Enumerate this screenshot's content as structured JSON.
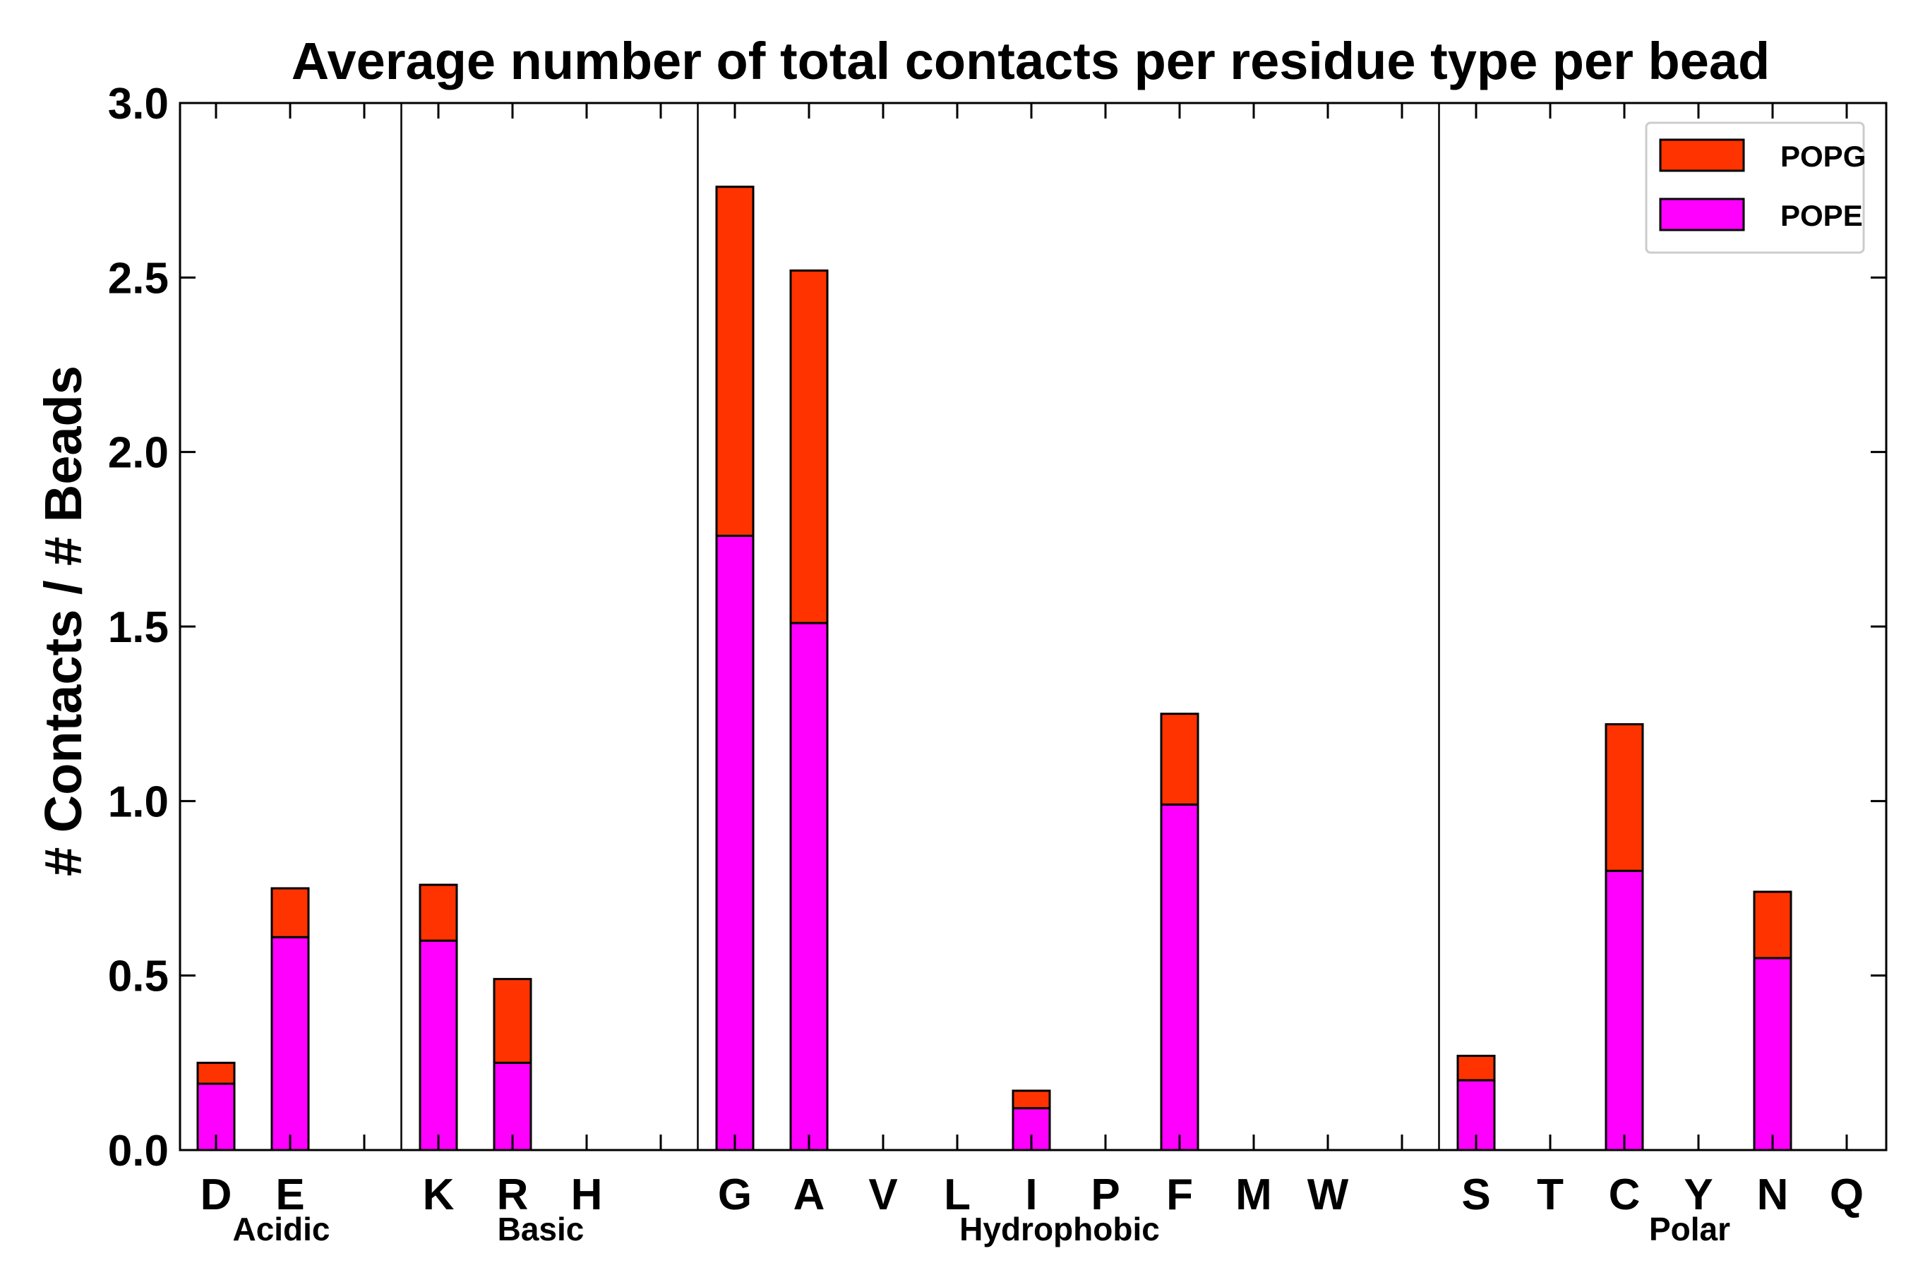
{
  "chart_data": {
    "type": "bar",
    "stacked": true,
    "title": "Average number of total contacts per residue type per bead",
    "xlabel": "",
    "ylabel": "# Contacts / # Beads",
    "ylim": [
      0,
      3.0
    ],
    "yticks": [
      "0.0",
      "0.5",
      "1.0",
      "1.5",
      "2.0",
      "2.5",
      "3.0"
    ],
    "categories": [
      "D",
      "E",
      "",
      "K",
      "R",
      "H",
      "",
      "G",
      "A",
      "V",
      "L",
      "I",
      "P",
      "F",
      "M",
      "W",
      "",
      "S",
      "T",
      "C",
      "Y",
      "N",
      "Q"
    ],
    "series": [
      {
        "name": "POPE",
        "color": "#ff00ff",
        "values": [
          0.19,
          0.61,
          0,
          0.6,
          0.25,
          0,
          0,
          1.76,
          1.51,
          0,
          0,
          0.12,
          0,
          0.99,
          0,
          0,
          0,
          0.2,
          0,
          0.8,
          0,
          0.55,
          0
        ]
      },
      {
        "name": "POPG",
        "color": "#ff3300",
        "values": [
          0.06,
          0.14,
          0,
          0.16,
          0.24,
          0,
          0,
          1.0,
          1.01,
          0,
          0,
          0.05,
          0,
          0.26,
          0,
          0,
          0,
          0.07,
          0,
          0.42,
          0,
          0.19,
          0
        ]
      }
    ],
    "groups": [
      {
        "label": "Acidic",
        "first": 0,
        "last": 1
      },
      {
        "label": "Basic",
        "first": 3,
        "last": 5
      },
      {
        "label": "Hydrophobic",
        "first": 7,
        "last": 15
      },
      {
        "label": "Polar",
        "first": 17,
        "last": 22
      }
    ],
    "separators_after_index": [
      2,
      6,
      16
    ],
    "legend": {
      "position": "top-right",
      "entries": [
        "POPG",
        "POPE"
      ]
    },
    "grid": false
  }
}
